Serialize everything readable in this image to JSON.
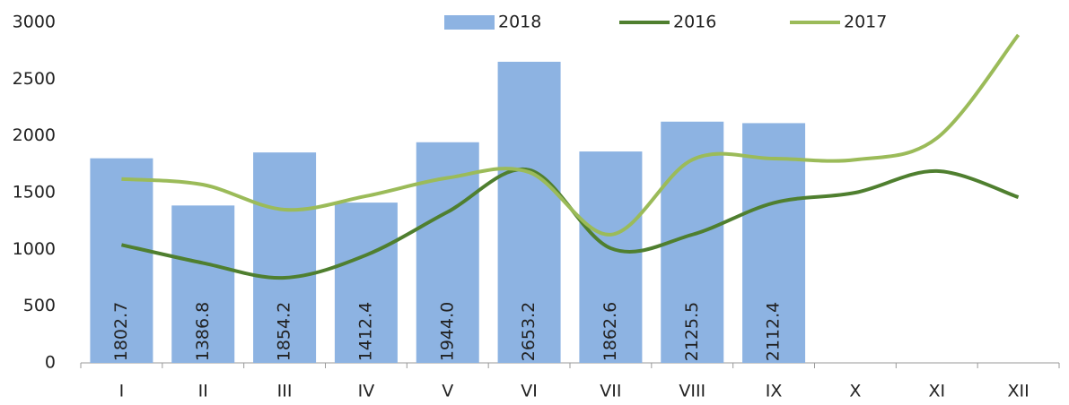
{
  "chart_data": {
    "type": "bar-line",
    "categories": [
      "I",
      "II",
      "III",
      "IV",
      "V",
      "VI",
      "VII",
      "VIII",
      "IX",
      "X",
      "XI",
      "XII"
    ],
    "series": [
      {
        "name": "2018",
        "type": "bar",
        "color": "#8db3e2",
        "values": [
          1802.7,
          1386.8,
          1854.2,
          1412.4,
          1944.0,
          2653.2,
          1862.6,
          2125.5,
          2112.4,
          null,
          null,
          null
        ],
        "value_labels": [
          "1802.7",
          "1386.8",
          "1854.2",
          "1412.4",
          "1944.0",
          "2653.2",
          "1862.6",
          "2125.5",
          "2112.4",
          null,
          null,
          null
        ]
      },
      {
        "name": "2016",
        "type": "line",
        "color": "#4f7f2f",
        "values": [
          1040,
          880,
          750,
          950,
          1330,
          1700,
          1010,
          1130,
          1410,
          1500,
          1690,
          1460
        ]
      },
      {
        "name": "2017",
        "type": "line",
        "color": "#9bbb59",
        "values": [
          1620,
          1570,
          1350,
          1470,
          1630,
          1680,
          1130,
          1790,
          1800,
          1790,
          1980,
          2890
        ]
      }
    ],
    "ylim": [
      0,
      3000
    ],
    "yticks": [
      0,
      500,
      1000,
      1500,
      2000,
      2500,
      3000
    ],
    "legend": "top"
  }
}
